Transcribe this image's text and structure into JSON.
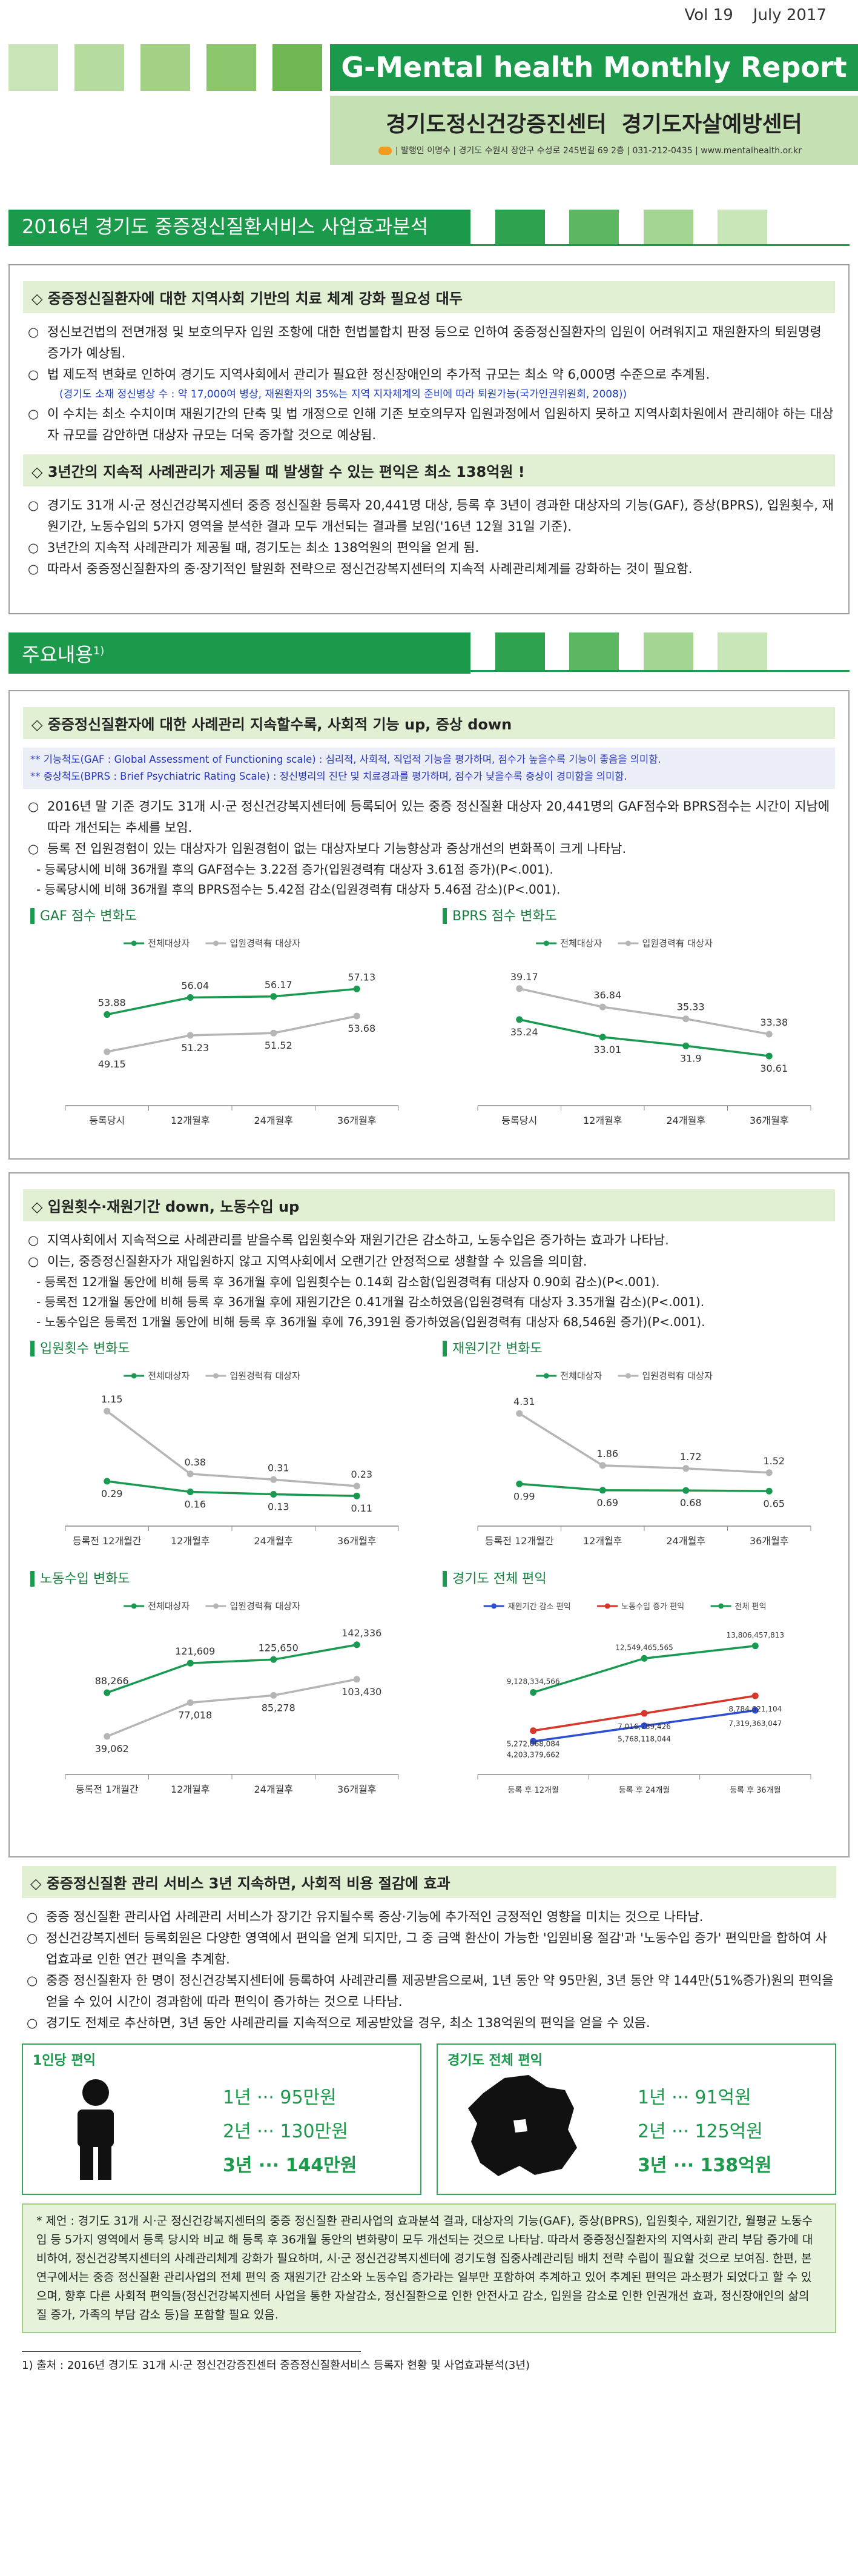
{
  "header": {
    "vol": "Vol 19",
    "date": "July 2017",
    "title": "G-Mental health Monthly Report",
    "org": "경기도정신건강증진센터  경기도자살예방센터",
    "info": "| 발행인 이명수 | 경기도 수원시 장안구 수성로 245번길 69 2층 | 031-212-0435 | www.mentalhealth.or.kr"
  },
  "section_title": "2016년 경기도 중증정신질환서비스 사업효과분석",
  "summary": {
    "heading": "◇ 중증정신질환자에 대한 지역사회 기반의 치료 체계 강화 필요성 대두",
    "bullets": [
      "정신보건법의 전면개정 및 보호의무자 입원 조항에 대한 헌법불합치 판정 등으로 인하여 중증정신질환자의 입원이 어려워지고 재원환자의 퇴원명령 증가가 예상됨.",
      "법 제도적 변화로 인하여 경기도 지역사회에서 관리가 필요한 정신장애인의 추가적 규모는 최소 약 6,000명 수준으로 추계됨.",
      "이 수치는 최소 수치이며 재원기간의 단축 및 법 개정으로 인해 기존 보호의무자 입원과정에서 입원하지 못하고 지역사회차원에서 관리해야 하는 대상자 규모를 감안하면 대상자 규모는 더욱 증가할 것으로 예상됨."
    ],
    "note": "(경기도 소재 정신병상 수 : 약 17,000여 병상, 재원환자의 35%는 지역 지자체계의 준비에 따라 퇴원가능(국가인권위원회, 2008))",
    "heading2": "◇ 3년간의 지속적 사례관리가 제공될 때 발생할 수 있는 편익은 최소 138억원 !",
    "bullets2": [
      "경기도 31개 시·군 정신건강복지센터 중증 정신질환 등록자 20,441명 대상, 등록 후 3년이 경과한 대상자의 기능(GAF), 증상(BPRS), 입원횟수, 재원기간, 노동수입의 5가지 영역을 분석한 결과 모두 개선되는 결과를 보임('16년 12월 31일 기준).",
      "3년간의 지속적 사례관리가 제공될 때, 경기도는 최소 138억원의 편익을 얻게 됨.",
      "따라서 중증정신질환자의 중·장기적인 탈원화 전략으로 정신건강복지센터의 지속적 사례관리체계를 강화하는 것이 필요함."
    ]
  },
  "main_title": "주요내용",
  "main_title_note": "1)",
  "function": {
    "heading": "◇ 중증정신질환자에 대한 사례관리 지속할수록, 사회적 기능 up, 증상 down",
    "definitions": [
      "** 기능척도(GAF : Global Assessment of Functioning scale) : 심리적, 사회적, 직업적 기능을 평가하며, 점수가 높을수록 기능이 좋음을 의미함.",
      "** 증상척도(BPRS : Brief Psychiatric Rating Scale) : 정신병리의 진단 및 치료경과를 평가하며, 점수가 낮을수록 증상이 경미함을 의미함."
    ],
    "bullets": [
      "2016년 말 기준 경기도 31개 시·군 정신건강복지센터에 등록되어 있는 중증 정신질환 대상자 20,441명의 GAF점수와 BPRS점수는 시간이 지남에 따라 개선되는 추세를 보임.",
      "등록 전 입원경험이 있는 대상자가 입원경험이 없는 대상자보다 기능향상과 증상개선의 변화폭이 크게 나타남."
    ],
    "details": [
      "- 등록당시에 비해 36개월 후의 GAF점수는 3.22점 증가(입원경력有 대상자 3.61점 증가)(P<.001).",
      "- 등록당시에 비해 36개월 후의 BPRS점수는 5.42점 감소(입원경력有 대상자 5.46점 감소)(P<.001)."
    ]
  },
  "hospital": {
    "heading": "◇ 입원횟수·재원기간 down, 노동수입 up",
    "bullets": [
      "지역사회에서 지속적으로 사례관리를 받을수록 입원횟수와 재원기간은 감소하고, 노동수입은 증가하는 효과가 나타남.",
      "이는, 중증정신질환자가 재입원하지 않고 지역사회에서 오랜기간 안정적으로 생활할 수 있음을 의미함."
    ],
    "details": [
      "- 등록전 12개월 동안에 비해 등록 후 36개월 후에 입원횟수는 0.14회 감소함(입원경력有 대상자 0.90회 감소)(P<.001).",
      "- 등록전 12개월 동안에 비해 등록 후 36개월 후에 재원기간은 0.41개월 감소하였음(입원경력有 대상자 3.35개월 감소)(P<.001).",
      "- 노동수입은 등록전 1개월 동안에 비해 등록 후 36개월 후에 76,391원 증가하였음(입원경력有 대상자 68,546원 증가)(P<.001)."
    ]
  },
  "cost": {
    "heading": "◇ 중증정신질환 관리 서비스 3년 지속하면, 사회적 비용 절감에 효과",
    "bullets": [
      "중증 정신질환 관리사업 사례관리 서비스가 장기간 유지될수록 증상·기능에 추가적인 긍정적인 영향을 미치는 것으로 나타남.",
      "정신건강복지센터 등록회원은 다양한 영역에서 편익을 얻게 되지만, 그 중 금액 환산이 가능한 '입원비용 절감'과 '노동수입 증가' 편익만을 합하여 사업효과로 인한 연간 편익을 추계함.",
      "중증 정신질환자 한 명이 정신건강복지센터에 등록하여 사례관리를 제공받음으로써, 1년 동안 약 95만원, 3년 동안 약 144만(51%증가)원의 편익을 얻을 수 있어 시간이 경과함에 따라 편익이 증가하는 것으로 나타남.",
      "경기도 전체로 추산하면, 3년 동안 사례관리를 지속적으로 제공받았을 경우, 최소 138억원의 편익을 얻을 수 있음."
    ],
    "per_person": {
      "title": "1인당 편익",
      "items": [
        "1년 ··· 95만원",
        "2년 ··· 130만원",
        "3년 ··· 144만원"
      ]
    },
    "province": {
      "title": "경기도 전체 편익",
      "items": [
        "1년 ··· 91억원",
        "2년 ··· 125억원",
        "3년 ··· 138억원"
      ]
    },
    "proposal": "* 제언 : 경기도 31개 시·군 정신건강복지센터의 중증 정신질환 관리사업의 효과분석 결과, 대상자의 기능(GAF), 증상(BPRS), 입원횟수, 재원기간, 월평균 노동수입 등 5가지 영역에서 등록 당시와 비교 해 등록 후 36개월 동안의 변화량이 모두 개선되는 것으로 나타남. 따라서 중증정신질환자의 지역사회 관리 부담 증가에 대비하여, 정신건강복지센터의 사례관리체계 강화가 필요하며, 시·군 정신건강복지센터에 경기도형 집중사례관리팀 배치 전략 수립이 필요할 것으로 보여짐. 한편, 본 연구에서는 중증 정신질환 관리사업의 전체 편익 중 재원기간 감소와 노동수입 증가라는 일부만 포함하여 추계하고 있어 추계된 편익은 과소평가 되었다고 할 수 있으며, 향후 다른 사회적 편익들(정신건강복지센터 사업을 통한 자살감소, 정신질환으로 인한 안전사고 감소, 입원을 감소로 인한 인권개선 효과, 정신장애인의 삶의 질 증가, 가족의 부담 감소 등)을 포함할 필요 있음."
  },
  "footnote": "1) 출처 : 2016년 경기도 31개 시·군 정신건강증진센터 중증정신질환서비스 등록자 현황 및 사업효과분석(3년)",
  "chart_data": [
    {
      "type": "line",
      "title": "GAF 점수 변화도",
      "categories": [
        "등록당시",
        "12개월후",
        "24개월후",
        "36개월후"
      ],
      "ylim": [
        45,
        60
      ],
      "series": [
        {
          "name": "전체대상자",
          "color": "#1a9a50",
          "values": [
            53.88,
            56.04,
            56.17,
            57.13
          ]
        },
        {
          "name": "입원경력有 대상자",
          "color": "#b5b5b5",
          "values": [
            49.15,
            51.23,
            51.52,
            53.68
          ]
        }
      ]
    },
    {
      "type": "line",
      "title": "BPRS 점수 변화도",
      "categories": [
        "등록당시",
        "12개월후",
        "24개월후",
        "36개월후"
      ],
      "ylim": [
        27,
        42
      ],
      "series": [
        {
          "name": "전체대상자",
          "color": "#1a9a50",
          "values": [
            35.24,
            33.01,
            31.9,
            30.61
          ]
        },
        {
          "name": "입원경력有 대상자",
          "color": "#b5b5b5",
          "values": [
            39.17,
            36.84,
            35.33,
            33.38
          ]
        }
      ]
    },
    {
      "type": "line",
      "title": "입원횟수 변화도",
      "categories": [
        "등록전 12개월간",
        "12개월후",
        "24개월후",
        "36개월후"
      ],
      "ylim": [
        0,
        1.3
      ],
      "series": [
        {
          "name": "전체대상자",
          "color": "#1a9a50",
          "values": [
            0.29,
            0.16,
            0.13,
            0.11
          ]
        },
        {
          "name": "입원경력有 대상자",
          "color": "#b5b5b5",
          "values": [
            1.15,
            0.38,
            0.31,
            0.23
          ]
        }
      ]
    },
    {
      "type": "line",
      "title": "재원기간 변화도",
      "categories": [
        "등록전 12개월간",
        "12개월후",
        "24개월후",
        "36개월후"
      ],
      "ylim": [
        0,
        5
      ],
      "series": [
        {
          "name": "전체대상자",
          "color": "#1a9a50",
          "values": [
            0.99,
            0.69,
            0.68,
            0.65
          ]
        },
        {
          "name": "입원경력有 대상자",
          "color": "#b5b5b5",
          "values": [
            4.31,
            1.86,
            1.72,
            1.52
          ]
        }
      ]
    },
    {
      "type": "line",
      "title": "노동수입 변화도",
      "categories": [
        "등록전 1개월간",
        "12개월후",
        "24개월후",
        "36개월후"
      ],
      "ylim": [
        20000,
        160000
      ],
      "series": [
        {
          "name": "전체대상자",
          "color": "#1a9a50",
          "values": [
            88266,
            121609,
            125650,
            142336
          ],
          "value_labels": [
            "88,266",
            "121,609",
            "125,650",
            "142,336"
          ]
        },
        {
          "name": "입원경력有 대상자",
          "color": "#b5b5b5",
          "values": [
            39062,
            77018,
            85278,
            103430
          ],
          "value_labels": [
            "39,062",
            "77,018",
            "85,278",
            "103,430"
          ]
        }
      ]
    },
    {
      "type": "line",
      "title": "경기도 전체 편익",
      "categories": [
        "등록 후 12개월",
        "등록 후 24개월",
        "등록 후 36개월"
      ],
      "ylim": [
        3000000000,
        15500000000
      ],
      "series": [
        {
          "name": "재원기간 감소 편익",
          "color": "#2e4fd1",
          "values": [
            4203379662,
            5768118044,
            7319363047
          ],
          "value_labels": [
            "4,203,379,662",
            "5,768,118,044",
            "7,319,363,047"
          ]
        },
        {
          "name": "노동수입 증가 편익",
          "color": "#d9362b",
          "values": [
            5272068084,
            7016789426,
            8784621104
          ],
          "value_labels": [
            "5,272,068,084",
            "7,016,789,426",
            "8,784,621,104"
          ]
        },
        {
          "name": "전체 편익",
          "color": "#1a9a50",
          "values": [
            9128334566,
            12549465565,
            13806457813
          ],
          "value_labels": [
            "9,128,334,566",
            "12,549,465,565",
            "13,806,457,813"
          ]
        }
      ]
    }
  ]
}
